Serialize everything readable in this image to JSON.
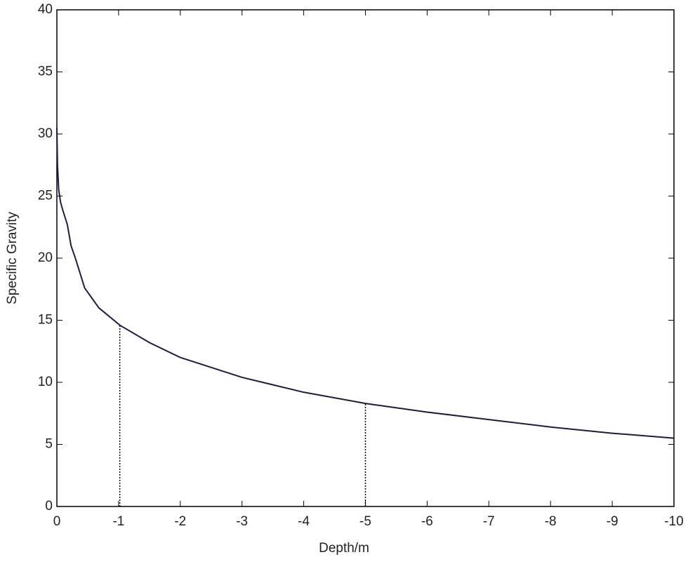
{
  "chart_data": {
    "type": "line",
    "xlabel": "Depth/m",
    "ylabel": "Specific Gravity",
    "x": [
      0,
      -0.01,
      -0.03,
      -0.06,
      -0.1,
      -0.17,
      -0.23,
      -0.3,
      -0.45,
      -0.68,
      -1.02,
      -1.5,
      -2,
      -3,
      -4,
      -5,
      -6,
      -7,
      -8,
      -9,
      -10
    ],
    "series": [
      {
        "color": "#1c1c4a",
        "values": [
          30.5,
          27.5,
          25.5,
          24.5,
          23.8,
          22.7,
          21,
          20,
          17.6,
          16,
          14.6,
          13.2,
          12,
          10.4,
          9.2,
          8.3,
          7.6,
          7,
          6.4,
          5.9,
          5.5
        ]
      }
    ],
    "droplines": {
      "x": [
        -1.02,
        -5
      ],
      "y": [
        14.6,
        8.3
      ]
    },
    "xlim": [
      0,
      -10
    ],
    "xticks": [
      0,
      -1,
      -2,
      -3,
      -4,
      -5,
      -6,
      -7,
      -8,
      -9,
      -10
    ],
    "ylim": [
      0,
      40
    ],
    "yticks": [
      0,
      5,
      10,
      15,
      20,
      25,
      30,
      35,
      40
    ],
    "grid": false
  }
}
